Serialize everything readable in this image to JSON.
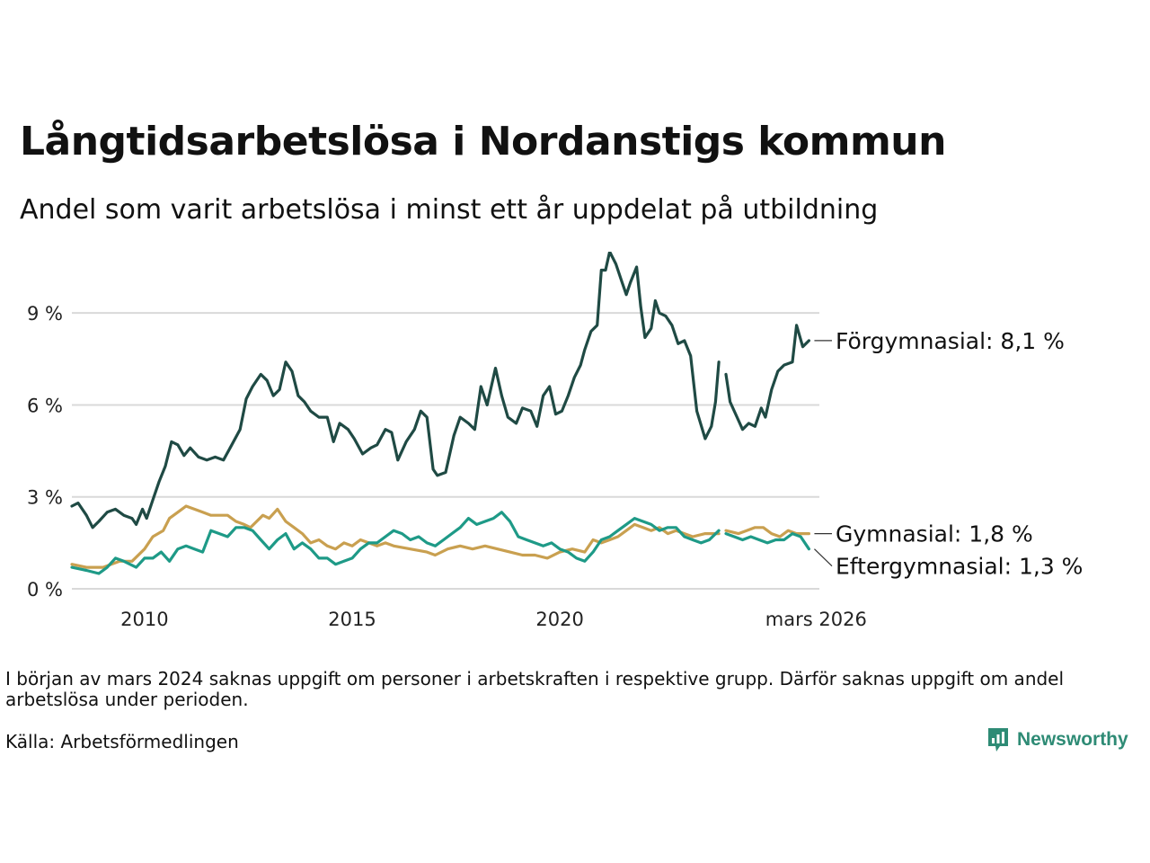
{
  "header": {
    "title": "Långtidsarbetslösa i Nordanstigs kommun",
    "subtitle": "Andel som varit arbetslösa i minst ett år uppdelat på utbildning"
  },
  "footer": {
    "note": "I början av mars 2024 saknas uppgift om personer i arbetskraften i respektive grupp. Därför saknas uppgift om andel arbetslösa under perioden.",
    "source": "Källa: Arbetsförmedlingen",
    "brand": "Newsworthy"
  },
  "colors": {
    "forgymnasial": "#1f4a44",
    "gymnasial": "#c9a050",
    "eftergymnasial": "#1e9a87",
    "grid": "#d9d9d9",
    "brand": "#2e8b75"
  },
  "chart_data": {
    "type": "line",
    "title": "Långtidsarbetslösa i Nordanstigs kommun",
    "subtitle": "Andel som varit arbetslösa i minst ett år uppdelat på utbildning",
    "xlabel": "",
    "ylabel": "",
    "xlim": [
      2008.25,
      2026.25
    ],
    "ylim": [
      0,
      11
    ],
    "yticks": [
      0,
      3,
      6,
      9
    ],
    "ytick_labels": [
      "0 %",
      "3 %",
      "6 %",
      "9 %"
    ],
    "xticks": [
      2010,
      2015,
      2020,
      2026.17
    ],
    "xtick_labels": [
      "2010",
      "2015",
      "2020",
      "mars 2026"
    ],
    "gap": [
      2023.83,
      2024.0
    ],
    "series": [
      {
        "name": "Förgymnasial",
        "end_label": "Förgymnasial: 8,1 %",
        "color": "#1f4a44",
        "points": [
          [
            2008.25,
            2.7
          ],
          [
            2008.4,
            2.8
          ],
          [
            2008.6,
            2.4
          ],
          [
            2008.75,
            2.0
          ],
          [
            2008.9,
            2.2
          ],
          [
            2009.1,
            2.5
          ],
          [
            2009.3,
            2.6
          ],
          [
            2009.5,
            2.4
          ],
          [
            2009.7,
            2.3
          ],
          [
            2009.8,
            2.1
          ],
          [
            2009.95,
            2.6
          ],
          [
            2010.05,
            2.3
          ],
          [
            2010.2,
            2.9
          ],
          [
            2010.35,
            3.5
          ],
          [
            2010.5,
            4.0
          ],
          [
            2010.65,
            4.8
          ],
          [
            2010.8,
            4.7
          ],
          [
            2010.95,
            4.35
          ],
          [
            2011.1,
            4.6
          ],
          [
            2011.3,
            4.3
          ],
          [
            2011.5,
            4.2
          ],
          [
            2011.7,
            4.3
          ],
          [
            2011.9,
            4.2
          ],
          [
            2012.1,
            4.7
          ],
          [
            2012.3,
            5.2
          ],
          [
            2012.45,
            6.2
          ],
          [
            2012.6,
            6.6
          ],
          [
            2012.8,
            7.0
          ],
          [
            2012.95,
            6.8
          ],
          [
            2013.1,
            6.3
          ],
          [
            2013.25,
            6.5
          ],
          [
            2013.4,
            7.4
          ],
          [
            2013.55,
            7.1
          ],
          [
            2013.7,
            6.3
          ],
          [
            2013.85,
            6.1
          ],
          [
            2014.0,
            5.8
          ],
          [
            2014.2,
            5.6
          ],
          [
            2014.4,
            5.6
          ],
          [
            2014.55,
            4.8
          ],
          [
            2014.7,
            5.4
          ],
          [
            2014.9,
            5.2
          ],
          [
            2015.05,
            4.9
          ],
          [
            2015.25,
            4.4
          ],
          [
            2015.45,
            4.6
          ],
          [
            2015.6,
            4.7
          ],
          [
            2015.8,
            5.2
          ],
          [
            2015.95,
            5.1
          ],
          [
            2016.1,
            4.2
          ],
          [
            2016.3,
            4.8
          ],
          [
            2016.5,
            5.2
          ],
          [
            2016.65,
            5.8
          ],
          [
            2016.8,
            5.6
          ],
          [
            2016.95,
            3.9
          ],
          [
            2017.05,
            3.7
          ],
          [
            2017.25,
            3.8
          ],
          [
            2017.45,
            5.0
          ],
          [
            2017.6,
            5.6
          ],
          [
            2017.8,
            5.4
          ],
          [
            2017.95,
            5.2
          ],
          [
            2018.1,
            6.6
          ],
          [
            2018.25,
            6.0
          ],
          [
            2018.45,
            7.2
          ],
          [
            2018.6,
            6.3
          ],
          [
            2018.75,
            5.6
          ],
          [
            2018.95,
            5.4
          ],
          [
            2019.1,
            5.9
          ],
          [
            2019.3,
            5.8
          ],
          [
            2019.45,
            5.3
          ],
          [
            2019.6,
            6.3
          ],
          [
            2019.75,
            6.6
          ],
          [
            2019.9,
            5.7
          ],
          [
            2020.05,
            5.8
          ],
          [
            2020.2,
            6.3
          ],
          [
            2020.35,
            6.9
          ],
          [
            2020.5,
            7.3
          ],
          [
            2020.6,
            7.8
          ],
          [
            2020.75,
            8.4
          ],
          [
            2020.9,
            8.6
          ],
          [
            2021.0,
            10.4
          ],
          [
            2021.1,
            10.4
          ],
          [
            2021.2,
            11.0
          ],
          [
            2021.35,
            10.6
          ],
          [
            2021.5,
            10.0
          ],
          [
            2021.6,
            9.6
          ],
          [
            2021.7,
            10.0
          ],
          [
            2021.85,
            10.5
          ],
          [
            2021.95,
            9.2
          ],
          [
            2022.05,
            8.2
          ],
          [
            2022.2,
            8.5
          ],
          [
            2022.3,
            9.4
          ],
          [
            2022.4,
            9.0
          ],
          [
            2022.55,
            8.9
          ],
          [
            2022.7,
            8.6
          ],
          [
            2022.85,
            8.0
          ],
          [
            2023.0,
            8.1
          ],
          [
            2023.15,
            7.6
          ],
          [
            2023.3,
            5.8
          ],
          [
            2023.5,
            4.9
          ],
          [
            2023.65,
            5.3
          ],
          [
            2023.75,
            6.1
          ],
          [
            2023.83,
            7.4
          ],
          [
            2024.0,
            7.0
          ],
          [
            2024.1,
            6.1
          ],
          [
            2024.3,
            5.5
          ],
          [
            2024.4,
            5.2
          ],
          [
            2024.55,
            5.4
          ],
          [
            2024.7,
            5.3
          ],
          [
            2024.85,
            5.9
          ],
          [
            2024.95,
            5.6
          ],
          [
            2025.1,
            6.5
          ],
          [
            2025.25,
            7.1
          ],
          [
            2025.4,
            7.3
          ],
          [
            2025.6,
            7.4
          ],
          [
            2025.7,
            8.6
          ],
          [
            2025.85,
            7.9
          ],
          [
            2026.0,
            8.1
          ]
        ]
      },
      {
        "name": "Gymnasial",
        "end_label": "Gymnasial: 1,8 %",
        "color": "#c9a050",
        "points": [
          [
            2008.25,
            0.8
          ],
          [
            2008.6,
            0.7
          ],
          [
            2009.0,
            0.7
          ],
          [
            2009.4,
            0.9
          ],
          [
            2009.7,
            0.9
          ],
          [
            2010.0,
            1.3
          ],
          [
            2010.2,
            1.7
          ],
          [
            2010.45,
            1.9
          ],
          [
            2010.6,
            2.3
          ],
          [
            2010.8,
            2.5
          ],
          [
            2011.0,
            2.7
          ],
          [
            2011.2,
            2.6
          ],
          [
            2011.4,
            2.5
          ],
          [
            2011.6,
            2.4
          ],
          [
            2011.8,
            2.4
          ],
          [
            2012.0,
            2.4
          ],
          [
            2012.2,
            2.2
          ],
          [
            2012.4,
            2.1
          ],
          [
            2012.55,
            2.0
          ],
          [
            2012.7,
            2.2
          ],
          [
            2012.85,
            2.4
          ],
          [
            2013.0,
            2.3
          ],
          [
            2013.2,
            2.6
          ],
          [
            2013.4,
            2.2
          ],
          [
            2013.6,
            2.0
          ],
          [
            2013.8,
            1.8
          ],
          [
            2014.0,
            1.5
          ],
          [
            2014.2,
            1.6
          ],
          [
            2014.4,
            1.4
          ],
          [
            2014.6,
            1.3
          ],
          [
            2014.8,
            1.5
          ],
          [
            2015.0,
            1.4
          ],
          [
            2015.2,
            1.6
          ],
          [
            2015.4,
            1.5
          ],
          [
            2015.6,
            1.4
          ],
          [
            2015.8,
            1.5
          ],
          [
            2016.0,
            1.4
          ],
          [
            2016.4,
            1.3
          ],
          [
            2016.8,
            1.2
          ],
          [
            2017.0,
            1.1
          ],
          [
            2017.3,
            1.3
          ],
          [
            2017.6,
            1.4
          ],
          [
            2017.9,
            1.3
          ],
          [
            2018.2,
            1.4
          ],
          [
            2018.5,
            1.3
          ],
          [
            2018.8,
            1.2
          ],
          [
            2019.1,
            1.1
          ],
          [
            2019.4,
            1.1
          ],
          [
            2019.7,
            1.0
          ],
          [
            2020.0,
            1.2
          ],
          [
            2020.3,
            1.3
          ],
          [
            2020.6,
            1.2
          ],
          [
            2020.8,
            1.6
          ],
          [
            2021.0,
            1.5
          ],
          [
            2021.2,
            1.6
          ],
          [
            2021.4,
            1.7
          ],
          [
            2021.6,
            1.9
          ],
          [
            2021.8,
            2.1
          ],
          [
            2022.0,
            2.0
          ],
          [
            2022.2,
            1.9
          ],
          [
            2022.4,
            2.0
          ],
          [
            2022.6,
            1.8
          ],
          [
            2022.8,
            1.9
          ],
          [
            2023.0,
            1.8
          ],
          [
            2023.2,
            1.7
          ],
          [
            2023.5,
            1.8
          ],
          [
            2023.83,
            1.8
          ],
          [
            2024.0,
            1.9
          ],
          [
            2024.3,
            1.8
          ],
          [
            2024.5,
            1.9
          ],
          [
            2024.7,
            2.0
          ],
          [
            2024.9,
            2.0
          ],
          [
            2025.1,
            1.8
          ],
          [
            2025.3,
            1.7
          ],
          [
            2025.5,
            1.9
          ],
          [
            2025.7,
            1.8
          ],
          [
            2025.9,
            1.8
          ],
          [
            2026.0,
            1.8
          ]
        ]
      },
      {
        "name": "Eftergymnasial",
        "end_label": "Eftergymnasial: 1,3 %",
        "color": "#1e9a87",
        "points": [
          [
            2008.25,
            0.7
          ],
          [
            2008.6,
            0.6
          ],
          [
            2008.9,
            0.5
          ],
          [
            2009.1,
            0.7
          ],
          [
            2009.3,
            1.0
          ],
          [
            2009.5,
            0.9
          ],
          [
            2009.8,
            0.7
          ],
          [
            2010.0,
            1.0
          ],
          [
            2010.2,
            1.0
          ],
          [
            2010.4,
            1.2
          ],
          [
            2010.6,
            0.9
          ],
          [
            2010.8,
            1.3
          ],
          [
            2011.0,
            1.4
          ],
          [
            2011.2,
            1.3
          ],
          [
            2011.4,
            1.2
          ],
          [
            2011.6,
            1.9
          ],
          [
            2011.8,
            1.8
          ],
          [
            2012.0,
            1.7
          ],
          [
            2012.2,
            2.0
          ],
          [
            2012.4,
            2.0
          ],
          [
            2012.6,
            1.9
          ],
          [
            2012.8,
            1.6
          ],
          [
            2013.0,
            1.3
          ],
          [
            2013.2,
            1.6
          ],
          [
            2013.4,
            1.8
          ],
          [
            2013.6,
            1.3
          ],
          [
            2013.8,
            1.5
          ],
          [
            2014.0,
            1.3
          ],
          [
            2014.2,
            1.0
          ],
          [
            2014.4,
            1.0
          ],
          [
            2014.6,
            0.8
          ],
          [
            2014.8,
            0.9
          ],
          [
            2015.0,
            1.0
          ],
          [
            2015.2,
            1.3
          ],
          [
            2015.4,
            1.5
          ],
          [
            2015.6,
            1.5
          ],
          [
            2015.8,
            1.7
          ],
          [
            2016.0,
            1.9
          ],
          [
            2016.2,
            1.8
          ],
          [
            2016.4,
            1.6
          ],
          [
            2016.6,
            1.7
          ],
          [
            2016.8,
            1.5
          ],
          [
            2017.0,
            1.4
          ],
          [
            2017.2,
            1.6
          ],
          [
            2017.4,
            1.8
          ],
          [
            2017.6,
            2.0
          ],
          [
            2017.8,
            2.3
          ],
          [
            2018.0,
            2.1
          ],
          [
            2018.2,
            2.2
          ],
          [
            2018.4,
            2.3
          ],
          [
            2018.6,
            2.5
          ],
          [
            2018.8,
            2.2
          ],
          [
            2019.0,
            1.7
          ],
          [
            2019.2,
            1.6
          ],
          [
            2019.4,
            1.5
          ],
          [
            2019.6,
            1.4
          ],
          [
            2019.8,
            1.5
          ],
          [
            2020.0,
            1.3
          ],
          [
            2020.2,
            1.2
          ],
          [
            2020.4,
            1.0
          ],
          [
            2020.6,
            0.9
          ],
          [
            2020.8,
            1.2
          ],
          [
            2021.0,
            1.6
          ],
          [
            2021.2,
            1.7
          ],
          [
            2021.4,
            1.9
          ],
          [
            2021.6,
            2.1
          ],
          [
            2021.8,
            2.3
          ],
          [
            2022.0,
            2.2
          ],
          [
            2022.2,
            2.1
          ],
          [
            2022.4,
            1.9
          ],
          [
            2022.6,
            2.0
          ],
          [
            2022.8,
            2.0
          ],
          [
            2023.0,
            1.7
          ],
          [
            2023.2,
            1.6
          ],
          [
            2023.4,
            1.5
          ],
          [
            2023.6,
            1.6
          ],
          [
            2023.83,
            1.9
          ],
          [
            2024.0,
            1.8
          ],
          [
            2024.2,
            1.7
          ],
          [
            2024.4,
            1.6
          ],
          [
            2024.6,
            1.7
          ],
          [
            2024.8,
            1.6
          ],
          [
            2025.0,
            1.5
          ],
          [
            2025.2,
            1.6
          ],
          [
            2025.4,
            1.6
          ],
          [
            2025.6,
            1.8
          ],
          [
            2025.8,
            1.7
          ],
          [
            2026.0,
            1.3
          ]
        ]
      }
    ]
  }
}
